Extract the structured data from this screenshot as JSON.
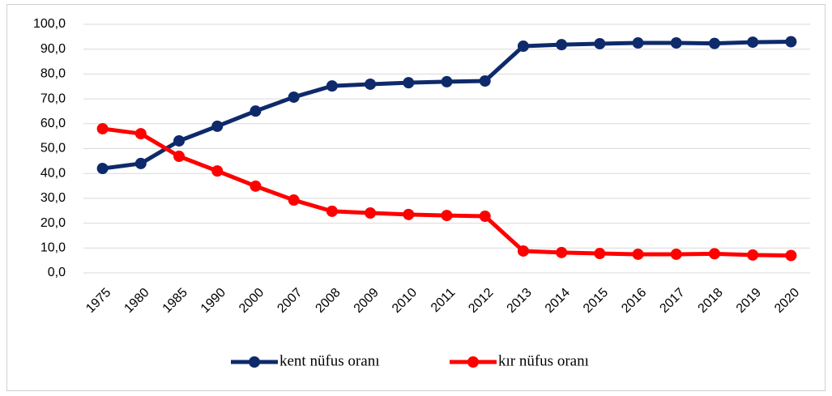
{
  "chart_data": {
    "type": "line",
    "categories": [
      "1975",
      "1980",
      "1985",
      "1990",
      "2000",
      "2007",
      "2008",
      "2009",
      "2010",
      "2011",
      "2012",
      "2013",
      "2014",
      "2015",
      "2016",
      "2017",
      "2018",
      "2019",
      "2020"
    ],
    "series": [
      {
        "name": "kent nüfus oranı",
        "color": "#0e2a6b",
        "values": [
          42.0,
          44.0,
          53.1,
          59.0,
          65.1,
          70.7,
          75.2,
          75.9,
          76.5,
          76.9,
          77.2,
          91.2,
          91.8,
          92.2,
          92.5,
          92.5,
          92.3,
          92.8,
          93.0
        ]
      },
      {
        "name": "kır nüfus oranı",
        "color": "#ff0000",
        "values": [
          58.0,
          56.0,
          46.9,
          41.0,
          34.9,
          29.3,
          24.8,
          24.1,
          23.5,
          23.1,
          22.8,
          8.8,
          8.2,
          7.8,
          7.5,
          7.5,
          7.7,
          7.2,
          7.0
        ]
      }
    ],
    "ylim": [
      0,
      100
    ],
    "yticks": [
      {
        "value": 0,
        "label": "0,0"
      },
      {
        "value": 10,
        "label": "10,0"
      },
      {
        "value": 20,
        "label": "20,0"
      },
      {
        "value": 30,
        "label": "30,0"
      },
      {
        "value": 40,
        "label": "40,0"
      },
      {
        "value": 50,
        "label": "50,0"
      },
      {
        "value": 60,
        "label": "60,0"
      },
      {
        "value": 70,
        "label": "70,0"
      },
      {
        "value": 80,
        "label": "80,0"
      },
      {
        "value": 90,
        "label": "90,0"
      },
      {
        "value": 100,
        "label": "100,0"
      }
    ],
    "grid": true,
    "legend": "bottom"
  }
}
